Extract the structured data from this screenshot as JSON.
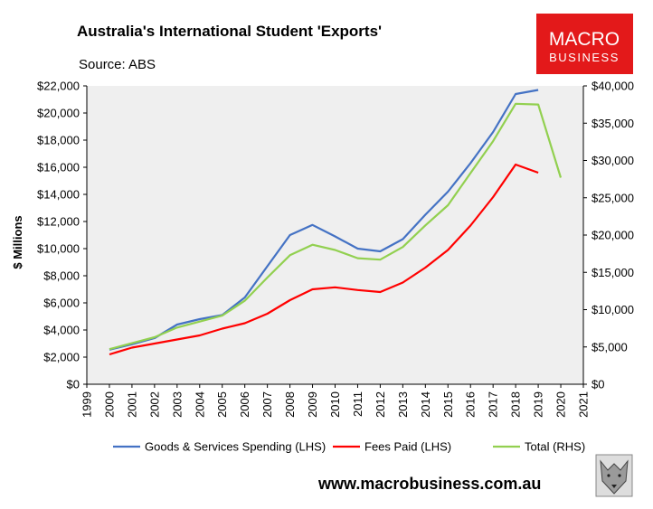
{
  "chart_data": {
    "type": "line",
    "title": "Australia's International Student 'Exports'",
    "subtitle": "Source: ABS",
    "ylabel": "$ Millions",
    "x": [
      2000,
      2001,
      2002,
      2003,
      2004,
      2005,
      2006,
      2007,
      2008,
      2009,
      2010,
      2011,
      2012,
      2013,
      2014,
      2015,
      2016,
      2017,
      2018,
      2019,
      2020
    ],
    "xlim": [
      1999,
      2021
    ],
    "x_ticks": [
      "1999",
      "2000",
      "2001",
      "2002",
      "2003",
      "2004",
      "2005",
      "2006",
      "2007",
      "2008",
      "2009",
      "2010",
      "2011",
      "2012",
      "2013",
      "2014",
      "2015",
      "2016",
      "2017",
      "2018",
      "2019",
      "2020",
      "2021"
    ],
    "ylim_left": [
      0,
      22000
    ],
    "ylim_right": [
      0,
      40000
    ],
    "y_ticks_left": [
      "$0",
      "$2,000",
      "$4,000",
      "$6,000",
      "$8,000",
      "$10,000",
      "$12,000",
      "$14,000",
      "$16,000",
      "$18,000",
      "$20,000",
      "$22,000"
    ],
    "y_ticks_right": [
      "$0",
      "$5,000",
      "$10,000",
      "$15,000",
      "$20,000",
      "$25,000",
      "$30,000",
      "$35,000",
      "$40,000"
    ],
    "series": [
      {
        "name": "Goods & Services Spending (LHS)",
        "axis": "left",
        "color": "#4472C4",
        "values": [
          2550,
          2950,
          3400,
          4400,
          4800,
          5100,
          6400,
          8700,
          11000,
          11750,
          10900,
          10000,
          9800,
          10700,
          12500,
          14200,
          16300,
          18600,
          21400,
          21700,
          null
        ]
      },
      {
        "name": "Fees Paid (LHS)",
        "axis": "left",
        "color": "#FF0000",
        "values": [
          2200,
          2700,
          3000,
          3300,
          3600,
          4100,
          4500,
          5200,
          6200,
          7000,
          7150,
          6950,
          6800,
          7500,
          8600,
          9900,
          11700,
          13800,
          16200,
          15600,
          null
        ]
      },
      {
        "name": "Total (RHS)",
        "axis": "right",
        "color": "#92D050",
        "values": [
          4700,
          5500,
          6300,
          7600,
          8400,
          9200,
          11200,
          14300,
          17300,
          18700,
          18000,
          16900,
          16700,
          18400,
          21300,
          24000,
          28300,
          32600,
          37600,
          37500,
          27700
        ]
      }
    ],
    "grid": false,
    "legend_position": "bottom"
  },
  "branding": {
    "logo_line1": "MACRO",
    "logo_line2": "BUSINESS",
    "logo_color": "#E3191A",
    "website": "www.macrobusiness.com.au"
  }
}
